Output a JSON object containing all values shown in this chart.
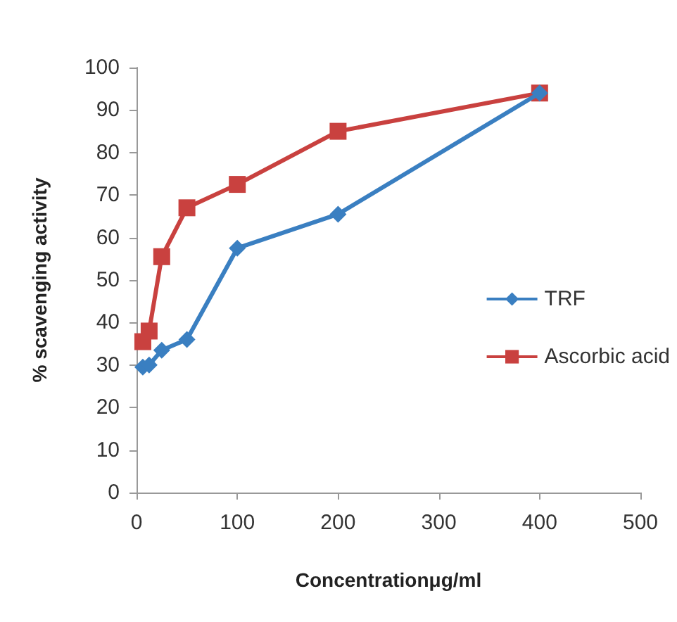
{
  "chart_data": {
    "type": "line",
    "xlabel": "Concentrationμg/ml",
    "ylabel": "% scavenging activity",
    "x": [
      6.25,
      12.5,
      25,
      50,
      100,
      200,
      400
    ],
    "series": [
      {
        "name": "TRF",
        "color": "#3a7fc1",
        "marker": "diamond",
        "values": [
          29.5,
          30,
          33.5,
          36,
          57.5,
          65.5,
          94
        ]
      },
      {
        "name": "Ascorbic acid",
        "color": "#c9413f",
        "marker": "square",
        "values": [
          35.5,
          38,
          55.5,
          67,
          72.5,
          85,
          94
        ]
      }
    ],
    "xlim": [
      0,
      500
    ],
    "xticks": [
      0,
      100,
      200,
      300,
      400,
      500
    ],
    "ylim": [
      0,
      100
    ],
    "yticks": [
      0,
      10,
      20,
      30,
      40,
      50,
      60,
      70,
      80,
      90,
      100
    ],
    "grid": false,
    "legend": "right"
  }
}
